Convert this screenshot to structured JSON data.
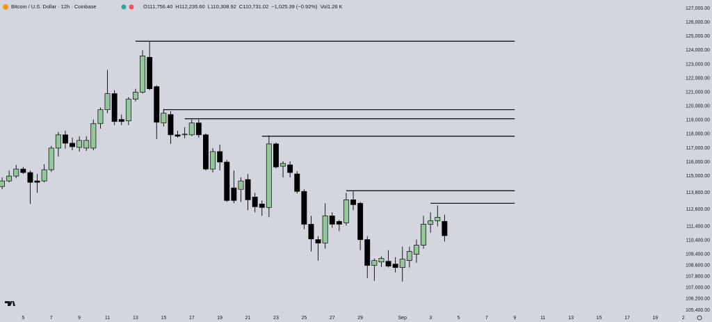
{
  "chart_data": {
    "type": "candlestick",
    "title": "Bitcoin / U.S. Dollar · 12h · Coinbase",
    "ohlc_legend": [
      {
        "key": "O",
        "text": "111,756.40"
      },
      {
        "key": "H",
        "text": "112,235.60"
      },
      {
        "key": "L",
        "text": "110,308.92"
      },
      {
        "key": "C",
        "text": "110,731.02"
      }
    ],
    "change": "−1,025.39 (−0.92%)",
    "volume": {
      "key": "Vol",
      "text": "1.26 K"
    },
    "open": [
      114250,
      114650,
      115000,
      115500,
      115250,
      114650,
      114650,
      115450,
      117000,
      117950,
      117350,
      117050,
      117000,
      117000,
      118750,
      119750,
      120900,
      119050,
      118950,
      120500,
      121000,
      123500,
      121400,
      118800,
      119400,
      117950,
      117950,
      117950,
      118800,
      117950,
      115500,
      116750,
      116000,
      114150,
      114050,
      114750,
      113500,
      113000,
      112750,
      117300,
      115700,
      115800,
      115150,
      113900,
      111550,
      110450,
      110200,
      112150,
      111750,
      111650,
      113300,
      113050,
      110450,
      108600,
      108850,
      108900,
      108700,
      108450,
      108950,
      109400,
      110050,
      111550,
      111800,
      111756.4
    ],
    "high": [
      114900,
      115400,
      115800,
      115650,
      115400,
      115150,
      115850,
      117150,
      118150,
      118250,
      117750,
      117850,
      117850,
      119050,
      119900,
      122600,
      121150,
      119400,
      120650,
      121250,
      124000,
      124600,
      121500,
      119800,
      119650,
      118250,
      118500,
      119050,
      119050,
      118050,
      117000,
      117250,
      116150,
      115400,
      114900,
      115150,
      113800,
      113250,
      117900,
      117400,
      116050,
      116050,
      115350,
      114050,
      112150,
      110700,
      113050,
      112400,
      111850,
      113800,
      113900,
      113150,
      110700,
      109100,
      109250,
      109700,
      109200,
      109950,
      109950,
      110450,
      112150,
      112400,
      112900,
      112235.6
    ],
    "low": [
      114050,
      114550,
      114850,
      115150,
      113000,
      113800,
      114550,
      115300,
      116400,
      116950,
      116850,
      116750,
      116800,
      116850,
      118400,
      119500,
      118650,
      118650,
      118650,
      120350,
      120900,
      121150,
      117650,
      118550,
      117300,
      117750,
      117700,
      117850,
      117750,
      115400,
      115250,
      115400,
      113150,
      113050,
      113150,
      112550,
      112400,
      112150,
      112050,
      115550,
      114900,
      114900,
      113750,
      111200,
      109600,
      108950,
      109800,
      111300,
      111050,
      111450,
      112550,
      109700,
      107700,
      107500,
      108500,
      108450,
      108100,
      107450,
      108450,
      108800,
      109800,
      110950,
      111400,
      110308.92
    ],
    "close": [
      114650,
      115000,
      115500,
      115250,
      114550,
      114550,
      115450,
      117000,
      117950,
      117350,
      117100,
      117550,
      117550,
      118750,
      119750,
      120900,
      118900,
      118900,
      120500,
      121000,
      123600,
      121250,
      118850,
      119500,
      117950,
      117850,
      118000,
      118800,
      117950,
      115500,
      116750,
      116000,
      113250,
      113250,
      114650,
      113300,
      112800,
      112750,
      117300,
      115650,
      115900,
      115250,
      113900,
      111550,
      110500,
      110200,
      112150,
      111550,
      111550,
      113300,
      112950,
      110450,
      108600,
      108950,
      109100,
      108550,
      108450,
      109050,
      109600,
      110050,
      111550,
      111800,
      112050,
      110731.02
    ],
    "up_color": "#93c69b",
    "down_color": "#000000",
    "levels": [
      {
        "value": 124650,
        "from": 19,
        "to": 73
      },
      {
        "value": 119750,
        "from": 23,
        "to": 73
      },
      {
        "value": 119100,
        "from": 26,
        "to": 73
      },
      {
        "value": 117850,
        "from": 37,
        "to": 73
      },
      {
        "value": 113950,
        "from": 49,
        "to": 73
      },
      {
        "value": 113050,
        "from": 61,
        "to": 73
      }
    ],
    "xlim": [
      -0.3,
      101.08
    ],
    "xticks": [
      {
        "value": 3,
        "label": "5"
      },
      {
        "value": 7,
        "label": "7"
      },
      {
        "value": 11,
        "label": "9"
      },
      {
        "value": 15,
        "label": "11"
      },
      {
        "value": 19,
        "label": "13"
      },
      {
        "value": 23,
        "label": "15"
      },
      {
        "value": 27,
        "label": "17"
      },
      {
        "value": 31,
        "label": "19"
      },
      {
        "value": 35,
        "label": "21"
      },
      {
        "value": 39,
        "label": "23"
      },
      {
        "value": 43,
        "label": "25"
      },
      {
        "value": 47,
        "label": "27"
      },
      {
        "value": 51,
        "label": "29"
      },
      {
        "value": 57,
        "label": "Sep"
      },
      {
        "value": 61,
        "label": "3"
      },
      {
        "value": 65,
        "label": "5"
      },
      {
        "value": 69,
        "label": "7"
      },
      {
        "value": 73,
        "label": "9"
      },
      {
        "value": 77,
        "label": "11"
      },
      {
        "value": 81,
        "label": "13"
      },
      {
        "value": 85,
        "label": "15"
      },
      {
        "value": 89,
        "label": "17"
      },
      {
        "value": 93,
        "label": "19"
      },
      {
        "value": 97,
        "label": "2"
      }
    ],
    "ylim": [
      105100,
      127600
    ],
    "yticks": [
      {
        "value": 127000,
        "label": "127,000.00"
      },
      {
        "value": 126000,
        "label": "126,000.00"
      },
      {
        "value": 125000,
        "label": "125,000.00"
      },
      {
        "value": 124000,
        "label": "124,000.00"
      },
      {
        "value": 123000,
        "label": "123,000.00"
      },
      {
        "value": 122000,
        "label": "122,000.00"
      },
      {
        "value": 121000,
        "label": "121,000.00"
      },
      {
        "value": 120000,
        "label": "120,000.00"
      },
      {
        "value": 119000,
        "label": "119,000.00"
      },
      {
        "value": 118000,
        "label": "118,000.00"
      },
      {
        "value": 117000,
        "label": "117,000.00"
      },
      {
        "value": 116000,
        "label": "116,000.00"
      },
      {
        "value": 115000,
        "label": "115,000.00"
      },
      {
        "value": 113800,
        "label": "113,800.00"
      },
      {
        "value": 112600,
        "label": "112,600.00"
      },
      {
        "value": 111400,
        "label": "111,400.00"
      },
      {
        "value": 110400,
        "label": "110,400.00"
      },
      {
        "value": 109400,
        "label": "109,400.00"
      },
      {
        "value": 108600,
        "label": "108,600.00"
      },
      {
        "value": 107800,
        "label": "107,800.00"
      },
      {
        "value": 107000,
        "label": "107,000.00"
      },
      {
        "value": 106200,
        "label": "106,200.00"
      },
      {
        "value": 105400,
        "label": "105,400.00"
      }
    ],
    "grid": false
  }
}
